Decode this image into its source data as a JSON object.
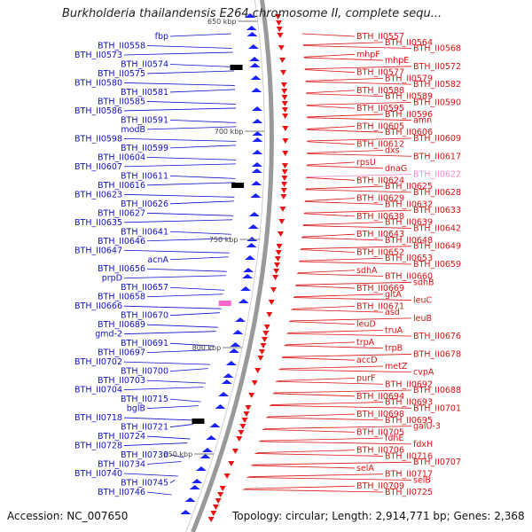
{
  "title": "Burkholderia thailandensis E264 chromosome II, complete sequ...",
  "footer": {
    "accession": "Accession: NC_007650",
    "topology": "Topology: circular; Length: 2,914,771 bp; Genes: 2,368"
  },
  "colors": {
    "left_genes": "#1010cc",
    "right_genes": "#dd1111",
    "highlight": "#ff88cc",
    "backbone": "#999999"
  },
  "kbp_markers": [
    "650 kbp",
    "700 kbp",
    "750 kbp",
    "800 kbp",
    "850 kbp"
  ],
  "left_labels": [
    "fbp",
    "BTH_II0558",
    "BTH_II0573",
    "BTH_II0574",
    "BTH_II0575",
    "BTH_II0580",
    "BTH_II0581",
    "BTH_II0585",
    "BTH_II0586",
    "BTH_II0591",
    "modB",
    "BTH_II0598",
    "BTH_II0599",
    "BTH_II0604",
    "BTH_II0607",
    "BTH_II0611",
    "BTH_II0616",
    "BTH_II0623",
    "BTH_II0626",
    "BTH_II0627",
    "BTH_II0635",
    "BTH_II0641",
    "BTH_II0646",
    "BTH_II0647",
    "acnA",
    "BTH_II0656",
    "prpD",
    "BTH_II0657",
    "BTH_II0658",
    "BTH_II0666",
    "BTH_II0670",
    "BTH_II0689",
    "gmd-2",
    "BTH_II0691",
    "BTH_II0697",
    "BTH_II0702",
    "BTH_II0700",
    "BTH_II0703",
    "BTH_II0704",
    "BTH_II0715",
    "bglB",
    "BTH_II0718",
    "BTH_II0721",
    "BTH_II0724",
    "BTH_II0728",
    "BTH_II0730",
    "BTH_II0734",
    "BTH_II0740",
    "BTH_II0745",
    "BTH_II0746"
  ],
  "right_labels": [
    "BTH_II0557",
    "BTH_II0564",
    "BTH_II0568",
    "mhpF",
    "mhpE",
    "BTH_II0572",
    "BTH_II0577",
    "BTH_II0579",
    "BTH_II0582",
    "BTH_II0588",
    "BTH_II0589",
    "BTH_II0590",
    "BTH_II0595",
    "BTH_II0596",
    "amn",
    "BTH_II0605",
    "BTH_II0606",
    "BTH_II0609",
    "BTH_II0612",
    "dxs",
    "BTH_II0617",
    "rpsU",
    "dnaG",
    "BTH_II0622",
    "BTH_II0624",
    "BTH_II0625",
    "BTH_II0628",
    "BTH_II0629",
    "BTH_II0632",
    "BTH_II0633",
    "BTH_II0638",
    "BTH_II0639",
    "BTH_II0642",
    "BTH_II0643",
    "BTH_II0648",
    "BTH_II0649",
    "BTH_II0652",
    "BTH_II0653",
    "BTH_II0659",
    "sdhA",
    "BTH_II0660",
    "sdhB",
    "BTH_II0669",
    "gltA",
    "leuC",
    "BTH_II0671",
    "asd",
    "leuB",
    "leuD",
    "truA",
    "BTH_II0676",
    "trpA",
    "trpB",
    "BTH_II0678",
    "accD",
    "metZ",
    "cvpA",
    "purF",
    "BTH_II0692",
    "BTH_II0688",
    "BTH_II0694",
    "BTH_II0693",
    "BTH_II0701",
    "BTH_II0698",
    "BTH_II0695",
    "galU-3",
    "BTH_II0705",
    "fdhE",
    "fdxH",
    "BTH_II0706",
    "BTH_II0716",
    "BTH_II0707",
    "selA",
    "BTH_II0717",
    "selB",
    "BTH_II0709",
    "BTH_II0725"
  ]
}
